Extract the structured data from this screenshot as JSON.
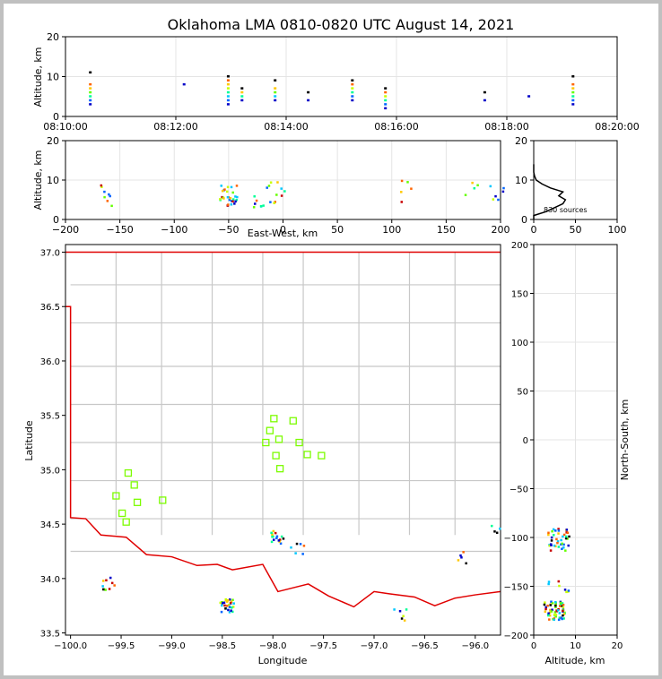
{
  "title": "Oklahoma LMA 0810-0820 UTC August 14, 2021",
  "chart_data": [
    {
      "panel": "time-altitude",
      "type": "scatter",
      "xlabel": "",
      "ylabel": "Altitude, km",
      "xticks": [
        "08:10:00",
        "08:12:00",
        "08:14:00",
        "08:16:00",
        "08:18:00",
        "08:20:00"
      ],
      "xlim_minutes": [
        0,
        10
      ],
      "ylim": [
        0,
        20
      ],
      "yticks": [
        0,
        10,
        20
      ],
      "grid": true,
      "points": [
        {
          "t": 0.45,
          "alt": [
            3,
            4,
            5,
            6,
            7,
            8,
            11
          ]
        },
        {
          "t": 2.15,
          "alt": [
            8
          ]
        },
        {
          "t": 2.95,
          "alt": [
            3,
            4,
            5,
            6,
            7,
            8,
            9,
            10
          ]
        },
        {
          "t": 3.2,
          "alt": [
            4,
            5,
            6,
            7
          ]
        },
        {
          "t": 3.8,
          "alt": [
            4,
            5,
            6,
            7,
            9
          ]
        },
        {
          "t": 4.4,
          "alt": [
            4,
            6
          ]
        },
        {
          "t": 5.2,
          "alt": [
            4,
            5,
            6,
            7,
            8,
            9
          ]
        },
        {
          "t": 5.8,
          "alt": [
            2,
            3,
            4,
            5,
            6,
            7
          ]
        },
        {
          "t": 7.6,
          "alt": [
            4,
            6
          ]
        },
        {
          "t": 8.4,
          "alt": [
            5
          ]
        },
        {
          "t": 9.2,
          "alt": [
            3,
            4,
            5,
            6,
            7,
            8,
            10
          ]
        }
      ]
    },
    {
      "panel": "east-west-altitude",
      "type": "scatter",
      "xlabel": "East-West, km",
      "ylabel": "Altitude, km",
      "xlim": [
        -200,
        200
      ],
      "xticks": [
        -200,
        -150,
        -100,
        -50,
        0,
        50,
        100,
        150,
        200
      ],
      "ylim": [
        0,
        20
      ],
      "yticks": [
        0,
        10,
        20
      ],
      "grid": true
    },
    {
      "panel": "altitude-histogram",
      "type": "line",
      "xlim": [
        0,
        100
      ],
      "xticks": [
        0,
        50,
        100
      ],
      "ylim": [
        0,
        20
      ],
      "yticks": [
        0,
        10,
        20
      ],
      "annotation": "830 sources",
      "profile": [
        [
          0,
          0
        ],
        [
          0,
          1
        ],
        [
          15,
          2
        ],
        [
          25,
          3
        ],
        [
          35,
          4
        ],
        [
          38,
          5
        ],
        [
          30,
          6
        ],
        [
          35,
          7
        ],
        [
          20,
          8
        ],
        [
          10,
          9
        ],
        [
          3,
          10
        ],
        [
          1,
          11
        ],
        [
          0,
          12
        ],
        [
          0,
          14
        ]
      ]
    },
    {
      "panel": "map",
      "type": "scatter",
      "xlabel": "Longitude",
      "ylabel": "Latitude",
      "xlim": [
        -100.05,
        -95.75
      ],
      "ylim": [
        33.48,
        37.07
      ],
      "xticks": [
        -100.0,
        -99.5,
        -99.0,
        -98.5,
        -98.0,
        -97.5,
        -97.0,
        -96.5,
        -96.0
      ],
      "yticks": [
        33.5,
        34.0,
        34.5,
        35.0,
        35.5,
        36.0,
        36.5,
        37.0
      ],
      "xtick_labels": [
        "−100.0",
        "−99.5",
        "−99.0",
        "−98.5",
        "−98.0",
        "−97.5",
        "−97.0",
        "−96.5",
        "−96.0"
      ],
      "ytick_labels": [
        "33.5",
        "34.0",
        "34.5",
        "35.0",
        "35.5",
        "36.0",
        "36.5",
        "37.0"
      ],
      "stations": [
        [
          -99.43,
          34.97
        ],
        [
          -99.37,
          34.86
        ],
        [
          -99.55,
          34.76
        ],
        [
          -99.34,
          34.7
        ],
        [
          -99.49,
          34.6
        ],
        [
          -99.45,
          34.52
        ],
        [
          -99.09,
          34.72
        ],
        [
          -97.99,
          35.47
        ],
        [
          -97.8,
          35.45
        ],
        [
          -98.03,
          35.36
        ],
        [
          -97.94,
          35.28
        ],
        [
          -98.07,
          35.25
        ],
        [
          -97.74,
          35.25
        ],
        [
          -97.97,
          35.13
        ],
        [
          -97.66,
          35.14
        ],
        [
          -97.52,
          35.13
        ],
        [
          -97.93,
          35.01
        ]
      ]
    },
    {
      "panel": "altitude-north-south",
      "type": "scatter",
      "xlabel": "Altitude, km",
      "ylabel": "North-South, km",
      "xlim": [
        0,
        20
      ],
      "xticks": [
        0,
        10,
        20
      ],
      "ylim": [
        -200,
        200
      ],
      "yticks": [
        -200,
        -150,
        -100,
        -50,
        0,
        50,
        100,
        150,
        200
      ]
    }
  ],
  "tick_text": {
    "minus200": "−200",
    "minus150": "−150",
    "minus100": "−100",
    "minus50": "−50"
  }
}
